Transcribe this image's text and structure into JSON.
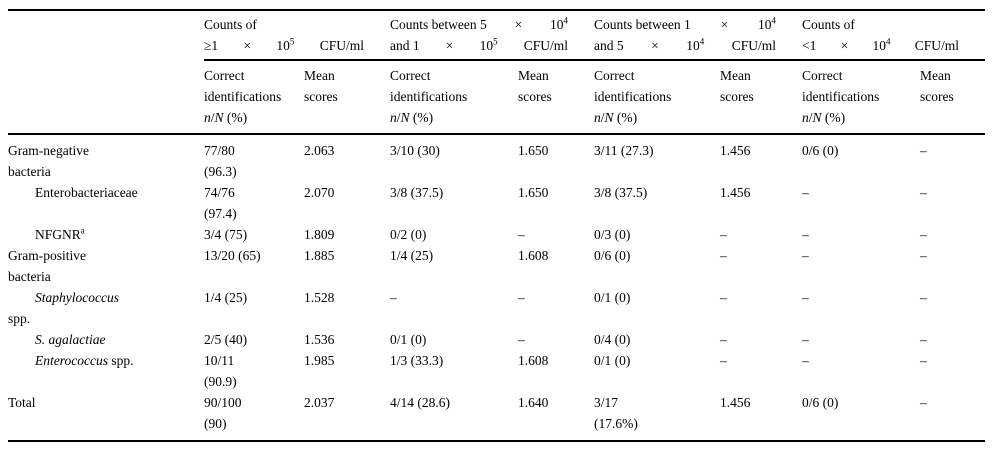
{
  "page": {
    "background_color": "#ffffff",
    "text_color": "#000000",
    "rule_color": "#000000"
  },
  "table": {
    "groups": [
      {
        "line1": [
          {
            "t": "Counts of"
          }
        ],
        "line2": [
          {
            "t": "≥1"
          },
          {
            "t": "×"
          },
          {
            "t": "10",
            "sup": "5"
          },
          {
            "t": "CFU/ml"
          }
        ]
      },
      {
        "line1": [
          {
            "t": "Counts between 5"
          },
          {
            "t": "×"
          },
          {
            "t": "10",
            "sup": "4"
          }
        ],
        "line2": [
          {
            "t": "and 1"
          },
          {
            "t": "×"
          },
          {
            "t": "10",
            "sup": "5"
          },
          {
            "t": "CFU/ml"
          }
        ]
      },
      {
        "line1": [
          {
            "t": "Counts between 1"
          },
          {
            "t": "×"
          },
          {
            "t": "10",
            "sup": "4"
          }
        ],
        "line2": [
          {
            "t": "and 5"
          },
          {
            "t": "×"
          },
          {
            "t": "10",
            "sup": "4"
          },
          {
            "t": "CFU/ml"
          }
        ]
      },
      {
        "line1": [
          {
            "t": "Counts of"
          }
        ],
        "line2": [
          {
            "t": "<1"
          },
          {
            "t": "×"
          },
          {
            "t": "10",
            "sup": "4"
          },
          {
            "t": "CFU/ml"
          }
        ]
      }
    ],
    "subheader": {
      "correct_lines": [
        "Correct",
        "identifications"
      ],
      "stat": [
        {
          "t": "n",
          "italic": true
        },
        {
          "t": "/"
        },
        {
          "t": "N",
          "italic": true
        },
        {
          "t": " (%)"
        }
      ],
      "mean_lines": [
        "Mean",
        "scores"
      ]
    },
    "rows": [
      {
        "indent": false,
        "label": [
          [
            {
              "t": "Gram-negative"
            }
          ],
          [
            {
              "t": "bacteria"
            }
          ]
        ],
        "cells": [
          [
            "77/80",
            "(96.3)"
          ],
          [
            "2.063"
          ],
          [
            "3/10 (30)"
          ],
          [
            "1.650"
          ],
          [
            "3/11 (27.3)"
          ],
          [
            "1.456"
          ],
          [
            "0/6 (0)"
          ],
          [
            "–"
          ]
        ]
      },
      {
        "indent": true,
        "label": [
          [
            {
              "t": "Enterobacteriaceae"
            }
          ]
        ],
        "cells": [
          [
            "74/76",
            "(97.4)"
          ],
          [
            "2.070"
          ],
          [
            "3/8 (37.5)"
          ],
          [
            "1.650"
          ],
          [
            "3/8 (37.5)"
          ],
          [
            "1.456"
          ],
          [
            "–"
          ],
          [
            "–"
          ]
        ]
      },
      {
        "indent": true,
        "label": [
          [
            {
              "t": "NFGNR",
              "sup": "a"
            }
          ]
        ],
        "cells": [
          [
            "3/4 (75)"
          ],
          [
            "1.809"
          ],
          [
            "0/2 (0)"
          ],
          [
            "–"
          ],
          [
            "0/3 (0)"
          ],
          [
            "–"
          ],
          [
            "–"
          ],
          [
            "–"
          ]
        ]
      },
      {
        "indent": false,
        "label": [
          [
            {
              "t": "Gram-positive"
            }
          ],
          [
            {
              "t": "bacteria"
            }
          ]
        ],
        "cells": [
          [
            "13/20 (65)"
          ],
          [
            "1.885"
          ],
          [
            "1/4 (25)"
          ],
          [
            "1.608"
          ],
          [
            "0/6 (0)"
          ],
          [
            "–"
          ],
          [
            "–"
          ],
          [
            "–"
          ]
        ]
      },
      {
        "indent": true,
        "label": [
          [
            {
              "t": "Staphylococcus",
              "italic": true
            }
          ],
          [
            {
              "t": "spp."
            }
          ]
        ],
        "cells": [
          [
            "1/4 (25)"
          ],
          [
            "1.528"
          ],
          [
            "–"
          ],
          [
            "–"
          ],
          [
            "0/1 (0)"
          ],
          [
            "–"
          ],
          [
            "–"
          ],
          [
            "–"
          ]
        ]
      },
      {
        "indent": true,
        "label": [
          [
            {
              "t": "S. agalactiae",
              "italic": true
            }
          ]
        ],
        "cells": [
          [
            "2/5 (40)"
          ],
          [
            "1.536"
          ],
          [
            "0/1 (0)"
          ],
          [
            "–"
          ],
          [
            "0/4 (0)"
          ],
          [
            "–"
          ],
          [
            "–"
          ],
          [
            "–"
          ]
        ]
      },
      {
        "indent": true,
        "label": [
          [
            {
              "t": "Enterococcus",
              "italic": true
            },
            {
              "t": " spp."
            }
          ]
        ],
        "cells": [
          [
            "10/11",
            "(90.9)"
          ],
          [
            "1.985"
          ],
          [
            "1/3 (33.3)"
          ],
          [
            "1.608"
          ],
          [
            "0/1 (0)"
          ],
          [
            "–"
          ],
          [
            "–"
          ],
          [
            "–"
          ]
        ]
      },
      {
        "indent": false,
        "label": [
          [
            {
              "t": "Total"
            }
          ]
        ],
        "cells": [
          [
            "90/100",
            "(90)"
          ],
          [
            "2.037"
          ],
          [
            "4/14 (28.6)"
          ],
          [
            "1.640"
          ],
          [
            "3/17",
            "(17.6%)"
          ],
          [
            "1.456"
          ],
          [
            "0/6 (0)"
          ],
          [
            "–"
          ]
        ]
      }
    ]
  }
}
